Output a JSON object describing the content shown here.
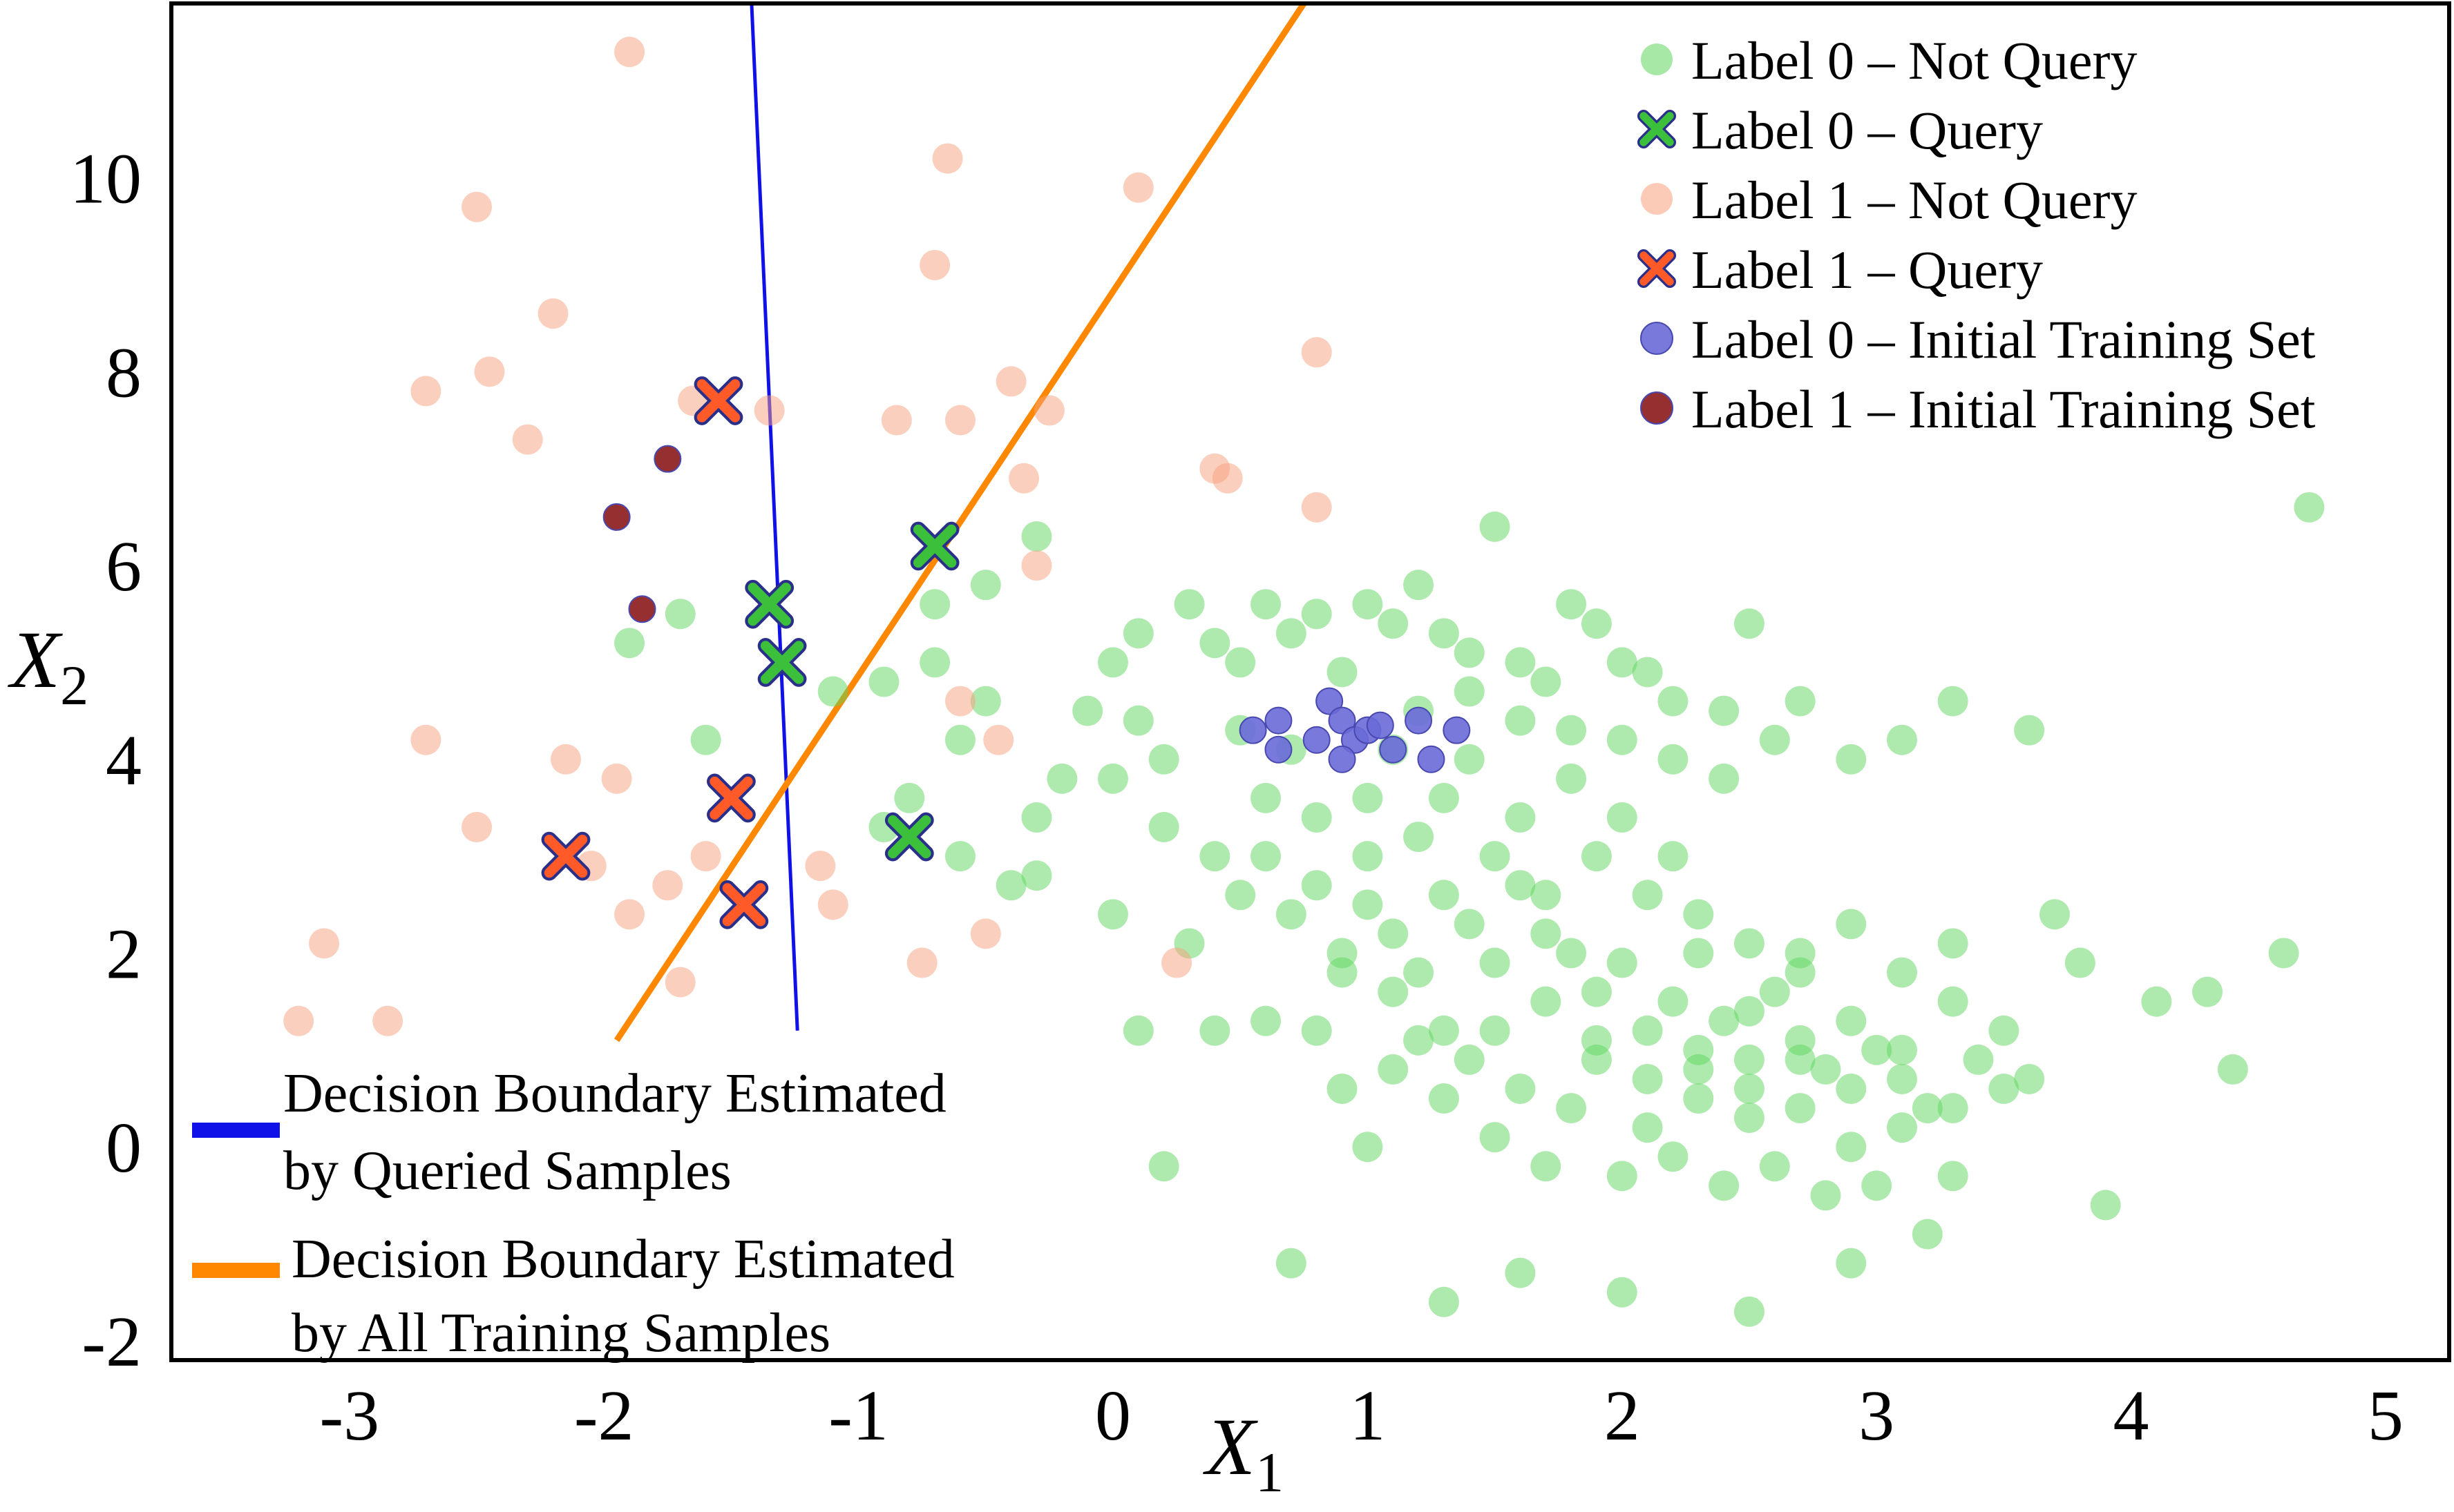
{
  "chart_data": {
    "type": "scatter",
    "title": "",
    "xlabel": "X",
    "xlabel_subscript": "1",
    "ylabel": "X",
    "ylabel_subscript": "2",
    "xlim": [
      -3.7,
      5.25
    ],
    "ylim": [
      -2.2,
      11.8
    ],
    "xticks": [
      -3,
      -2,
      -1,
      0,
      1,
      2,
      3,
      4,
      5
    ],
    "xtick_labels": [
      "-3",
      "-2",
      "-1",
      "0",
      "1",
      "2",
      "3",
      "4",
      "5"
    ],
    "yticks": [
      -2,
      0,
      2,
      4,
      6,
      8,
      10
    ],
    "ytick_labels": [
      "-2",
      "0",
      "2",
      "4",
      "6",
      "8",
      "10"
    ],
    "grid": false,
    "legend_position": "top-right",
    "series": [
      {
        "name": "Label 0 – Not Query",
        "marker": "circle",
        "color": "#5ed65e",
        "points": [
          [
            -1.6,
            4.2
          ],
          [
            -1.7,
            5.5
          ],
          [
            -1.9,
            5.2
          ],
          [
            -1.1,
            4.7
          ],
          [
            -0.7,
            5.6
          ],
          [
            -0.3,
            6.3
          ],
          [
            -0.5,
            5.8
          ],
          [
            -0.9,
            4.8
          ],
          [
            -0.6,
            4.2
          ],
          [
            -0.8,
            3.6
          ],
          [
            -0.6,
            3.0
          ],
          [
            -0.4,
            2.7
          ],
          [
            -0.9,
            3.3
          ],
          [
            -0.7,
            5.0
          ],
          [
            -0.5,
            4.6
          ],
          [
            -0.3,
            3.4
          ],
          [
            -0.2,
            3.8
          ],
          [
            0.0,
            3.8
          ],
          [
            -0.1,
            4.5
          ],
          [
            0.1,
            4.4
          ],
          [
            0.2,
            4.0
          ],
          [
            0.0,
            5.0
          ],
          [
            0.1,
            5.3
          ],
          [
            0.3,
            5.6
          ],
          [
            0.4,
            5.2
          ],
          [
            0.5,
            5.0
          ],
          [
            0.6,
            5.6
          ],
          [
            0.7,
            5.3
          ],
          [
            0.8,
            5.5
          ],
          [
            1.0,
            5.6
          ],
          [
            1.1,
            5.4
          ],
          [
            1.2,
            5.8
          ],
          [
            1.3,
            5.3
          ],
          [
            1.4,
            5.1
          ],
          [
            1.5,
            6.4
          ],
          [
            1.6,
            5.0
          ],
          [
            1.7,
            4.8
          ],
          [
            1.8,
            5.6
          ],
          [
            1.9,
            5.4
          ],
          [
            2.0,
            5.0
          ],
          [
            2.1,
            4.9
          ],
          [
            2.2,
            4.6
          ],
          [
            2.4,
            4.5
          ],
          [
            2.5,
            5.4
          ],
          [
            2.6,
            4.2
          ],
          [
            2.7,
            4.6
          ],
          [
            2.9,
            4.0
          ],
          [
            3.1,
            4.2
          ],
          [
            3.3,
            4.6
          ],
          [
            3.6,
            4.3
          ],
          [
            4.7,
            6.6
          ],
          [
            0.2,
            3.3
          ],
          [
            0.4,
            3.0
          ],
          [
            0.5,
            2.6
          ],
          [
            0.6,
            3.0
          ],
          [
            0.7,
            2.4
          ],
          [
            0.8,
            2.7
          ],
          [
            0.9,
            2.0
          ],
          [
            1.0,
            2.5
          ],
          [
            1.1,
            2.2
          ],
          [
            1.2,
            1.8
          ],
          [
            1.3,
            2.6
          ],
          [
            1.4,
            2.3
          ],
          [
            1.5,
            1.9
          ],
          [
            1.6,
            2.7
          ],
          [
            1.7,
            2.2
          ],
          [
            1.8,
            2.0
          ],
          [
            1.9,
            1.6
          ],
          [
            2.0,
            1.9
          ],
          [
            2.1,
            1.2
          ],
          [
            2.2,
            1.5
          ],
          [
            2.3,
            1.0
          ],
          [
            2.4,
            1.3
          ],
          [
            2.5,
            0.9
          ],
          [
            2.6,
            1.6
          ],
          [
            2.7,
            1.1
          ],
          [
            2.8,
            0.8
          ],
          [
            2.9,
            0.6
          ],
          [
            3.0,
            1.0
          ],
          [
            3.1,
            0.7
          ],
          [
            3.2,
            0.4
          ],
          [
            3.3,
            1.5
          ],
          [
            3.4,
            0.9
          ],
          [
            3.5,
            1.2
          ],
          [
            3.6,
            0.7
          ],
          [
            3.7,
            2.4
          ],
          [
            3.8,
            1.9
          ],
          [
            3.9,
            -0.6
          ],
          [
            4.1,
            1.5
          ],
          [
            4.3,
            1.6
          ],
          [
            4.4,
            0.8
          ],
          [
            4.6,
            2.0
          ],
          [
            0.8,
            1.2
          ],
          [
            0.9,
            0.6
          ],
          [
            1.0,
            0.0
          ],
          [
            1.1,
            0.8
          ],
          [
            1.2,
            1.1
          ],
          [
            1.3,
            0.5
          ],
          [
            1.4,
            0.9
          ],
          [
            1.5,
            0.1
          ],
          [
            1.6,
            0.6
          ],
          [
            1.7,
            -0.2
          ],
          [
            1.8,
            0.4
          ],
          [
            1.9,
            0.9
          ],
          [
            2.0,
            -0.3
          ],
          [
            2.1,
            0.2
          ],
          [
            2.2,
            -0.1
          ],
          [
            2.3,
            0.5
          ],
          [
            2.4,
            -0.4
          ],
          [
            2.5,
            0.3
          ],
          [
            2.6,
            -0.2
          ],
          [
            2.7,
            0.4
          ],
          [
            2.8,
            -0.5
          ],
          [
            2.9,
            0.0
          ],
          [
            3.0,
            -0.4
          ],
          [
            3.1,
            0.2
          ],
          [
            3.2,
            -0.9
          ],
          [
            3.3,
            -0.3
          ],
          [
            1.3,
            -1.6
          ],
          [
            1.6,
            -1.3
          ],
          [
            2.0,
            -1.5
          ],
          [
            2.5,
            -1.7
          ],
          [
            2.9,
            -1.2
          ],
          [
            0.7,
            -1.2
          ],
          [
            0.2,
            -0.2
          ],
          [
            0.1,
            1.2
          ],
          [
            0.4,
            1.2
          ],
          [
            0.6,
            1.3
          ],
          [
            0.3,
            2.1
          ],
          [
            0.0,
            2.4
          ],
          [
            -0.3,
            2.8
          ],
          [
            0.5,
            4.3
          ],
          [
            0.9,
            4.9
          ],
          [
            1.0,
            3.6
          ],
          [
            1.2,
            3.2
          ],
          [
            1.4,
            4.0
          ],
          [
            1.6,
            3.4
          ],
          [
            1.8,
            3.8
          ],
          [
            2.0,
            3.4
          ],
          [
            2.2,
            3.0
          ],
          [
            2.3,
            2.4
          ],
          [
            2.5,
            2.1
          ],
          [
            2.7,
            1.8
          ],
          [
            2.9,
            2.3
          ],
          [
            3.1,
            1.8
          ],
          [
            3.3,
            2.1
          ],
          [
            0.6,
            3.6
          ],
          [
            0.8,
            3.4
          ],
          [
            1.0,
            3.0
          ],
          [
            1.1,
            4.1
          ],
          [
            1.3,
            3.6
          ],
          [
            1.5,
            3.0
          ],
          [
            1.7,
            2.6
          ],
          [
            1.9,
            3.0
          ],
          [
            2.1,
            2.6
          ],
          [
            2.3,
            2.0
          ],
          [
            2.5,
            1.4
          ],
          [
            2.7,
            2.0
          ],
          [
            2.9,
            1.3
          ],
          [
            3.1,
            1.0
          ],
          [
            3.3,
            0.4
          ],
          [
            3.5,
            0.6
          ],
          [
            0.7,
            4.1
          ],
          [
            1.2,
            4.5
          ],
          [
            1.4,
            4.7
          ],
          [
            1.6,
            4.4
          ],
          [
            1.8,
            4.3
          ],
          [
            2.0,
            4.2
          ],
          [
            2.2,
            4.0
          ],
          [
            2.4,
            3.8
          ],
          [
            1.9,
            1.1
          ],
          [
            2.1,
            0.7
          ],
          [
            2.3,
            0.8
          ],
          [
            2.5,
            0.6
          ],
          [
            2.7,
            0.9
          ],
          [
            1.5,
            1.2
          ],
          [
            1.7,
            1.5
          ],
          [
            1.1,
            1.6
          ],
          [
            0.9,
            1.8
          ],
          [
            1.3,
            1.2
          ]
        ]
      },
      {
        "name": "Label 0 – Query",
        "marker": "x",
        "color": "#3cc03c",
        "points": [
          [
            -0.7,
            6.2
          ],
          [
            -1.35,
            5.6
          ],
          [
            -1.3,
            5.0
          ],
          [
            -0.8,
            3.2
          ]
        ]
      },
      {
        "name": "Label 1 – Not Query",
        "marker": "circle",
        "color": "#f7a07e",
        "points": [
          [
            -1.9,
            11.3
          ],
          [
            -2.5,
            9.7
          ],
          [
            -2.2,
            8.6
          ],
          [
            -2.45,
            8.0
          ],
          [
            -2.7,
            7.8
          ],
          [
            -2.3,
            7.3
          ],
          [
            -1.65,
            7.7
          ],
          [
            -1.35,
            7.6
          ],
          [
            -0.65,
            10.2
          ],
          [
            -0.7,
            9.1
          ],
          [
            -0.6,
            7.5
          ],
          [
            -0.85,
            7.5
          ],
          [
            -0.4,
            7.9
          ],
          [
            -0.25,
            7.6
          ],
          [
            -0.35,
            6.9
          ],
          [
            0.1,
            9.9
          ],
          [
            0.8,
            8.2
          ],
          [
            0.4,
            7.0
          ],
          [
            0.45,
            6.9
          ],
          [
            0.8,
            6.6
          ],
          [
            -0.3,
            6.0
          ],
          [
            -0.6,
            4.6
          ],
          [
            -0.45,
            4.2
          ],
          [
            -2.7,
            4.2
          ],
          [
            -2.15,
            4.0
          ],
          [
            -1.95,
            3.8
          ],
          [
            -2.5,
            3.3
          ],
          [
            -1.6,
            3.0
          ],
          [
            -2.05,
            2.9
          ],
          [
            -1.75,
            2.7
          ],
          [
            -1.15,
            2.9
          ],
          [
            -1.1,
            2.5
          ],
          [
            -1.9,
            2.4
          ],
          [
            -0.75,
            1.9
          ],
          [
            -0.5,
            2.2
          ],
          [
            -1.7,
            1.7
          ],
          [
            -3.1,
            2.1
          ],
          [
            -3.2,
            1.3
          ],
          [
            -2.85,
            1.3
          ],
          [
            0.25,
            1.9
          ]
        ]
      },
      {
        "name": "Label 1 – Query",
        "marker": "x",
        "color": "#ff5a28",
        "points": [
          [
            -1.55,
            7.7
          ],
          [
            -1.5,
            3.6
          ],
          [
            -1.45,
            2.5
          ],
          [
            -2.15,
            3.0
          ]
        ]
      },
      {
        "name": "Label 0 – Initial Training Set",
        "marker": "circle",
        "color": "#6a6ad8",
        "points": [
          [
            0.55,
            4.3
          ],
          [
            0.65,
            4.4
          ],
          [
            0.65,
            4.1
          ],
          [
            0.8,
            4.2
          ],
          [
            0.85,
            4.6
          ],
          [
            0.9,
            4.4
          ],
          [
            0.95,
            4.2
          ],
          [
            1.0,
            4.3
          ],
          [
            1.1,
            4.1
          ],
          [
            1.2,
            4.4
          ],
          [
            1.25,
            4.0
          ],
          [
            1.35,
            4.3
          ],
          [
            0.9,
            4.0
          ],
          [
            1.05,
            4.35
          ]
        ]
      },
      {
        "name": "Label 1 – Initial Training Set",
        "marker": "circle",
        "color": "#8b1a1a",
        "points": [
          [
            -1.75,
            7.1
          ],
          [
            -1.95,
            6.5
          ],
          [
            -1.85,
            5.55
          ]
        ]
      }
    ],
    "lines": [
      {
        "name": "Decision Boundary Estimated by Queried Samples",
        "color": "#1010e8",
        "x": [
          -1.42,
          -1.24
        ],
        "y": [
          11.8,
          1.2
        ]
      },
      {
        "name": "Decision Boundary Estimated by All Training Samples",
        "color": "#ff8800",
        "x": [
          -1.95,
          0.75
        ],
        "y": [
          1.1,
          11.8
        ]
      }
    ],
    "lower_legend": [
      {
        "line1": "Decision Boundary Estimated",
        "line2": "by Queried Samples",
        "color": "#1010e8"
      },
      {
        "line1": "Decision Boundary Estimated",
        "line2": "by All Training Samples",
        "color": "#ff8800"
      }
    ]
  }
}
